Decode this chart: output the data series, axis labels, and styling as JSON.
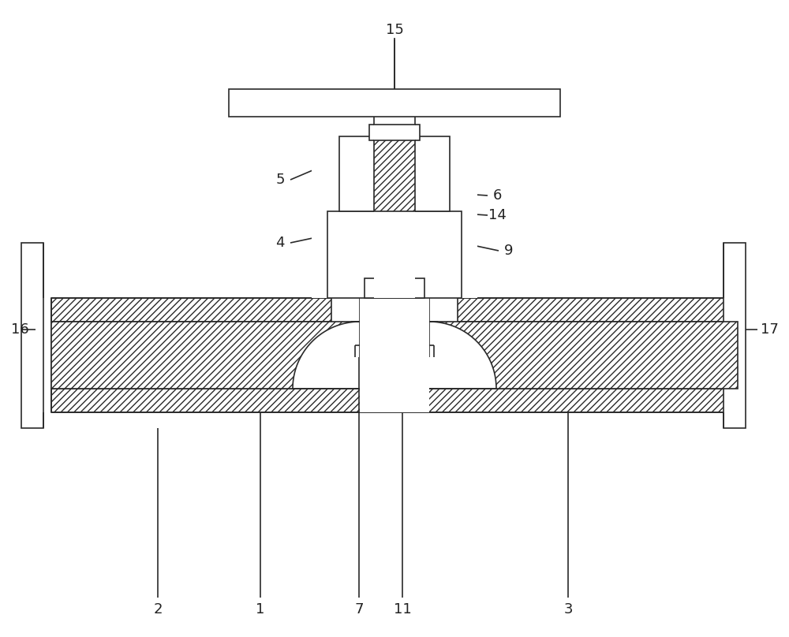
{
  "background_color": "#ffffff",
  "line_color": "#2a2a2a",
  "figsize": [
    10.0,
    8.08
  ],
  "dpi": 100,
  "label_fontsize": 13,
  "hatch": "////",
  "stem_hatch": "////",
  "lw": 1.2
}
